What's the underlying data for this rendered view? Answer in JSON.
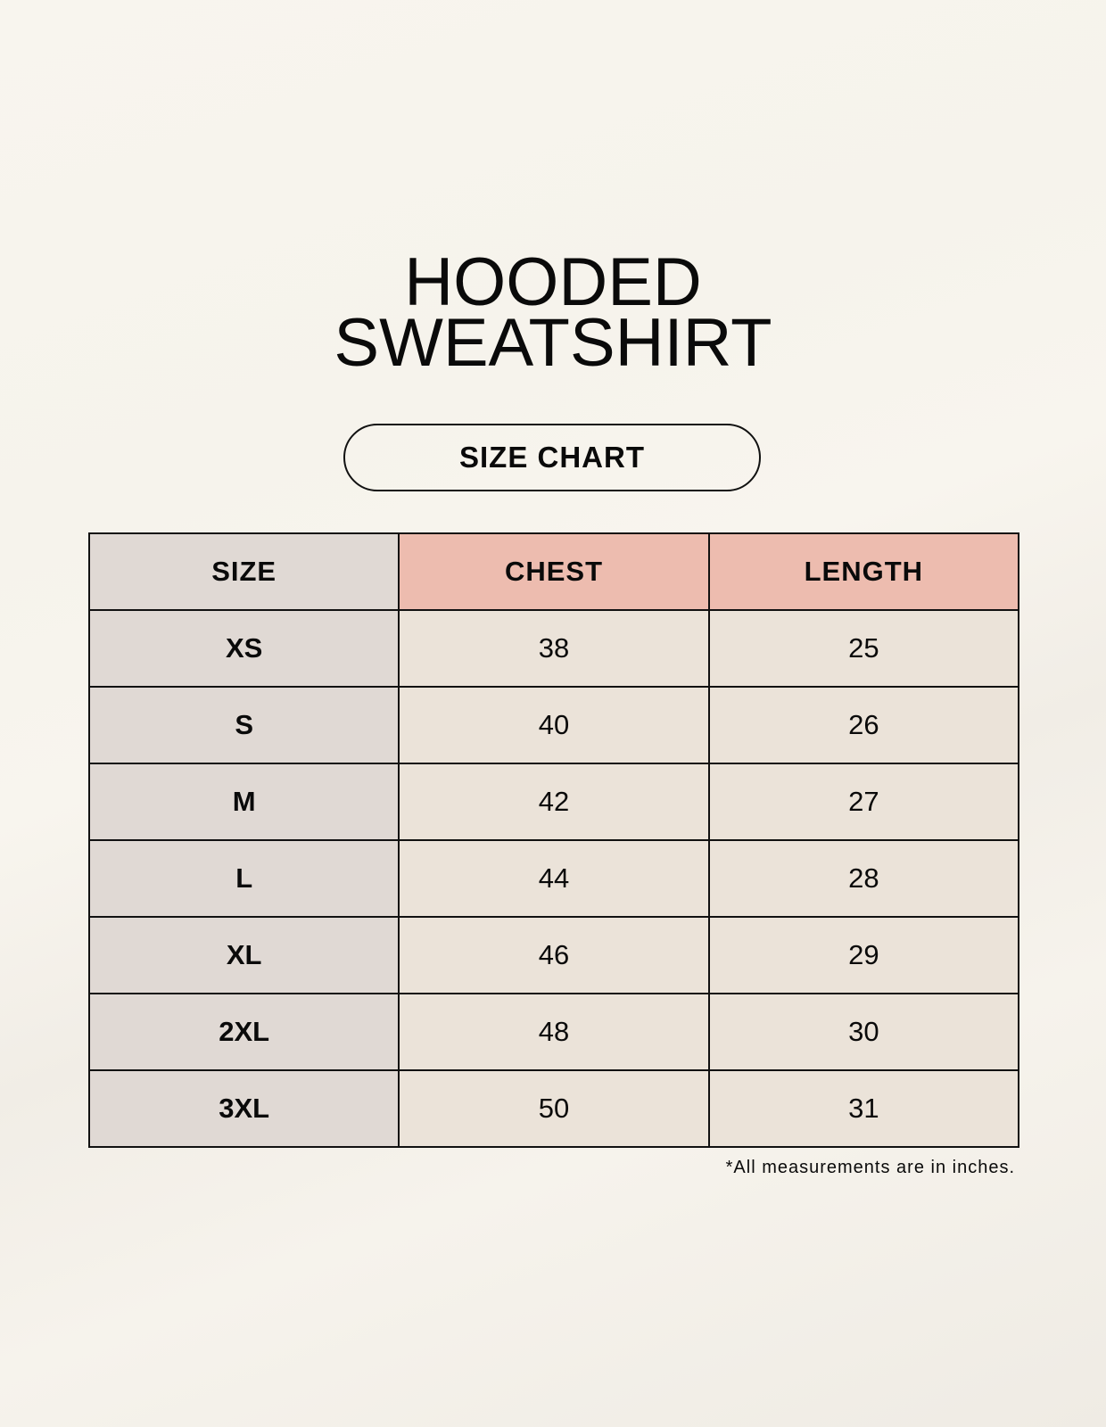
{
  "title": {
    "line1": "HOODED",
    "line2": "SWEATSHIRT"
  },
  "subtitle": "SIZE CHART",
  "table": {
    "headers": [
      "SIZE",
      "CHEST",
      "LENGTH"
    ],
    "rows": [
      [
        "XS",
        "38",
        "25"
      ],
      [
        "S",
        "40",
        "26"
      ],
      [
        "M",
        "42",
        "27"
      ],
      [
        "L",
        "44",
        "28"
      ],
      [
        "XL",
        "46",
        "29"
      ],
      [
        "2XL",
        "48",
        "30"
      ],
      [
        "3XL",
        "50",
        "31"
      ]
    ]
  },
  "note": "*All measurements are in inches.",
  "colors": {
    "size_column": "#e0d9d4",
    "header_accent": "#edbcaf",
    "cell": "#ebe3d9"
  }
}
